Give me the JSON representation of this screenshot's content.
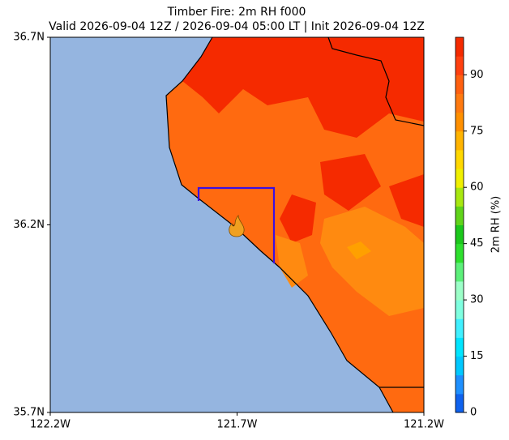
{
  "chart_data": {
    "type": "map",
    "title": "Timber Fire: 2m RH f000",
    "subtitle": "Valid 2026-09-04 12Z / 2026-09-04 05:00 LT | Init 2026-09-04 12Z",
    "xlim": [
      -122.2,
      -121.2
    ],
    "xticks": [
      {
        "value": -122.2,
        "label": "122.2W"
      },
      {
        "value": -121.7,
        "label": "121.7W"
      },
      {
        "value": -121.2,
        "label": "121.2W"
      }
    ],
    "ylim": [
      35.7,
      36.7
    ],
    "yticks": [
      {
        "value": 35.7,
        "label": "35.7N"
      },
      {
        "value": 36.2,
        "label": "36.2N"
      },
      {
        "value": 36.7,
        "label": "36.7N"
      }
    ],
    "colorbar": {
      "label": "2m RH (%)",
      "lim": [
        0,
        100
      ],
      "ticks": [
        0,
        15,
        30,
        45,
        60,
        75,
        90
      ],
      "colors": [
        "#0f62ee",
        "#1e90ff",
        "#00c8ff",
        "#00e5ff",
        "#40f0ff",
        "#7fffe0",
        "#9cffc8",
        "#5cf07a",
        "#2ee02e",
        "#1cc81c",
        "#60d41a",
        "#a8e810",
        "#f0f000",
        "#ffd800",
        "#ffb400",
        "#ff9000",
        "#ff7a10",
        "#ff6010",
        "#ff4010",
        "#f52a00"
      ]
    }
  }
}
